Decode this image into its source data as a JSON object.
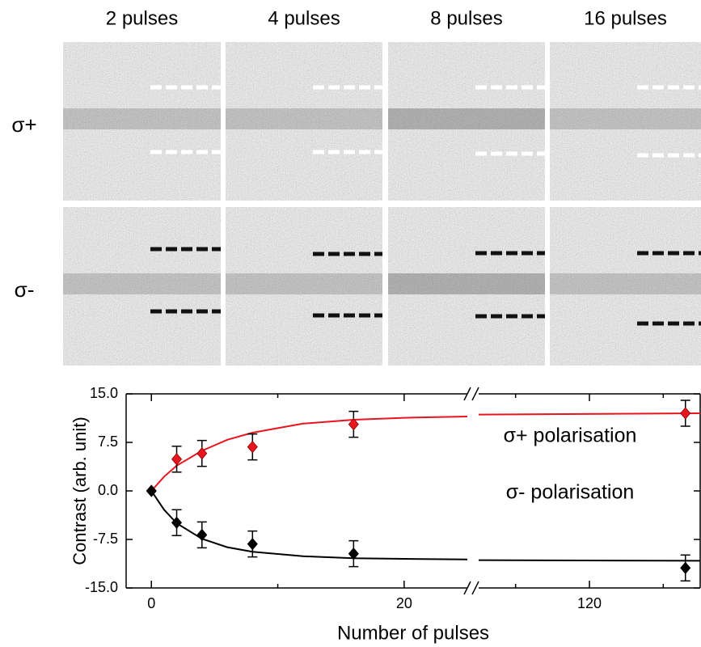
{
  "image_grid": {
    "columns": [
      "2 pulses",
      "4 pulses",
      "8 pulses",
      "16 pulses"
    ],
    "rows": [
      "σ+",
      "σ-"
    ]
  },
  "chart_data": {
    "type": "scatter",
    "xlabel": "Number of pulses",
    "ylabel": "Contrast (arb. unit)",
    "x_segments": [
      {
        "xlim": [
          -2,
          25
        ],
        "xticks": [
          0,
          20
        ],
        "xminorticks": [
          10
        ]
      },
      {
        "xlim": [
          105,
          135
        ],
        "xticks": [
          120
        ],
        "xminorticks": [
          110,
          130
        ]
      }
    ],
    "ylim": [
      -15,
      15
    ],
    "yticks": [
      {
        "value": -15,
        "label": "-15.0"
      },
      {
        "value": -7.5,
        "label": "-7.5"
      },
      {
        "value": 0,
        "label": "0.0"
      },
      {
        "value": 7.5,
        "label": "7.5"
      },
      {
        "value": 15,
        "label": "15.0"
      }
    ],
    "series": [
      {
        "name": "σ+ polarisation",
        "color": "#e8141e",
        "x": [
          0,
          2,
          4,
          8,
          16,
          133
        ],
        "values": [
          0,
          4.9,
          5.8,
          6.8,
          10.3,
          12
        ],
        "errors": [
          0,
          2,
          2,
          2,
          2,
          2
        ],
        "fit": {
          "x": [
            0,
            1,
            2,
            4,
            6,
            8,
            12,
            16,
            20,
            25,
            null,
            105,
            135
          ],
          "values": [
            0,
            2.2,
            3.9,
            6.2,
            7.9,
            9.0,
            10.4,
            11.0,
            11.3,
            11.5,
            null,
            11.8,
            12.0
          ]
        }
      },
      {
        "name": "σ- polarisation",
        "color": "#000000",
        "x": [
          0,
          2,
          4,
          8,
          16,
          133
        ],
        "values": [
          0,
          -4.9,
          -6.8,
          -8.2,
          -9.7,
          -11.9
        ],
        "errors": [
          0,
          2,
          2,
          2,
          2,
          2
        ],
        "fit": {
          "x": [
            0,
            1,
            2,
            4,
            6,
            8,
            12,
            16,
            20,
            25,
            null,
            105,
            135
          ],
          "values": [
            0,
            -2.9,
            -5.0,
            -7.4,
            -8.7,
            -9.4,
            -10.1,
            -10.4,
            -10.5,
            -10.6,
            null,
            -10.7,
            -10.8
          ]
        }
      }
    ]
  }
}
